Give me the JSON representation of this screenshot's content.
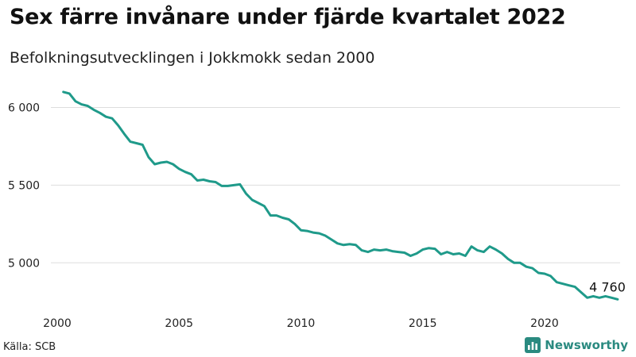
{
  "chart_data": {
    "type": "line",
    "title": "Sex färre invånare under fjärde kvartalet 2022",
    "subtitle": "Befolkningsutvecklingen i Jokkmokk sedan 2000",
    "source": "Källa: SCB",
    "brand": "Newsworthy",
    "line_color": "#1f9a8a",
    "xlim": [
      2000,
      2023.1
    ],
    "ylim": [
      4700,
      6120
    ],
    "x_ticks": [
      {
        "value": 2000,
        "label": "2000"
      },
      {
        "value": 2005,
        "label": "2005"
      },
      {
        "value": 2010,
        "label": "2010"
      },
      {
        "value": 2015,
        "label": "2015"
      },
      {
        "value": 2020,
        "label": "2020"
      }
    ],
    "y_ticks": [
      {
        "value": 5000,
        "label": "5 000"
      },
      {
        "value": 5500,
        "label": "5 500"
      },
      {
        "value": 6000,
        "label": "6 000"
      }
    ],
    "end_label": "4 760",
    "series": [
      {
        "x": [
          2000.25,
          2000.5,
          2000.75,
          2001.0,
          2001.25,
          2001.5,
          2001.75,
          2002.0,
          2002.25,
          2002.5,
          2002.75,
          2003.0,
          2003.25,
          2003.5,
          2003.75,
          2004.0,
          2004.25,
          2004.5,
          2004.75,
          2005.0,
          2005.25,
          2005.5,
          2005.75,
          2006.0,
          2006.25,
          2006.5,
          2006.75,
          2007.0,
          2007.25,
          2007.5,
          2007.75,
          2008.0,
          2008.25,
          2008.5,
          2008.75,
          2009.0,
          2009.25,
          2009.5,
          2009.75,
          2010.0,
          2010.25,
          2010.5,
          2010.75,
          2011.0,
          2011.25,
          2011.5,
          2011.75,
          2012.0,
          2012.25,
          2012.5,
          2012.75,
          2013.0,
          2013.25,
          2013.5,
          2013.75,
          2014.0,
          2014.25,
          2014.5,
          2014.75,
          2015.0,
          2015.25,
          2015.5,
          2015.75,
          2016.0,
          2016.25,
          2016.5,
          2016.75,
          2017.0,
          2017.25,
          2017.5,
          2017.75,
          2018.0,
          2018.25,
          2018.5,
          2018.75,
          2019.0,
          2019.25,
          2019.5,
          2019.75,
          2020.0,
          2020.25,
          2020.5,
          2020.75,
          2021.0,
          2021.25,
          2021.5,
          2021.75,
          2022.0,
          2022.25,
          2022.5,
          2022.75,
          2023.0
        ],
        "y": [
          6100,
          6090,
          6040,
          6020,
          6010,
          5985,
          5965,
          5940,
          5930,
          5885,
          5830,
          5780,
          5770,
          5760,
          5680,
          5635,
          5645,
          5650,
          5635,
          5605,
          5585,
          5570,
          5530,
          5535,
          5525,
          5520,
          5495,
          5495,
          5500,
          5505,
          5445,
          5405,
          5385,
          5365,
          5305,
          5305,
          5290,
          5280,
          5250,
          5210,
          5205,
          5195,
          5190,
          5175,
          5150,
          5125,
          5115,
          5120,
          5115,
          5080,
          5070,
          5085,
          5080,
          5085,
          5075,
          5070,
          5065,
          5045,
          5060,
          5085,
          5095,
          5090,
          5055,
          5070,
          5055,
          5060,
          5045,
          5105,
          5080,
          5070,
          5105,
          5085,
          5060,
          5025,
          5000,
          5000,
          4975,
          4965,
          4935,
          4930,
          4915,
          4875,
          4865,
          4855,
          4845,
          4810,
          4775,
          4785,
          4775,
          4785,
          4775,
          4765
        ]
      }
    ]
  }
}
